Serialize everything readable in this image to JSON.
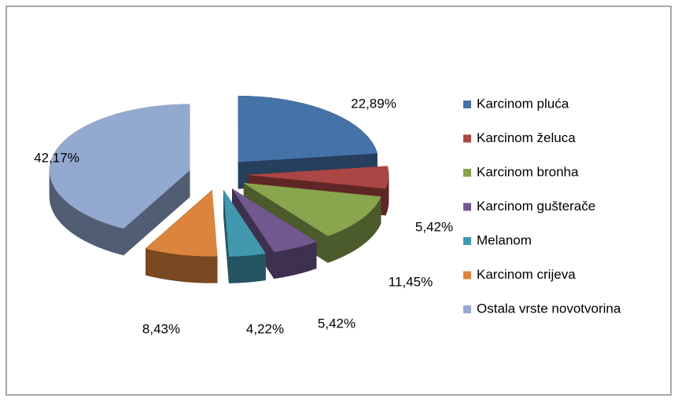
{
  "chart_data": {
    "type": "pie",
    "categories": [
      "Karcinom pluća",
      "Karcinom želuca",
      "Karcinom bronha",
      "Karcinom gušterače",
      "Melanom",
      "Karcinom crijeva",
      "Ostala vrste novotvorina"
    ],
    "values": [
      22.89,
      5.42,
      11.45,
      5.42,
      4.22,
      8.43,
      42.17
    ],
    "value_labels": [
      "22,89%",
      "5,42%",
      "11,45%",
      "5,42%",
      "4,22%",
      "8,43%",
      "42,17%"
    ],
    "colors": [
      "#4572a7",
      "#aa4643",
      "#89a54e",
      "#71588f",
      "#4198af",
      "#db843d",
      "#93a9cf"
    ],
    "legend": "right"
  }
}
